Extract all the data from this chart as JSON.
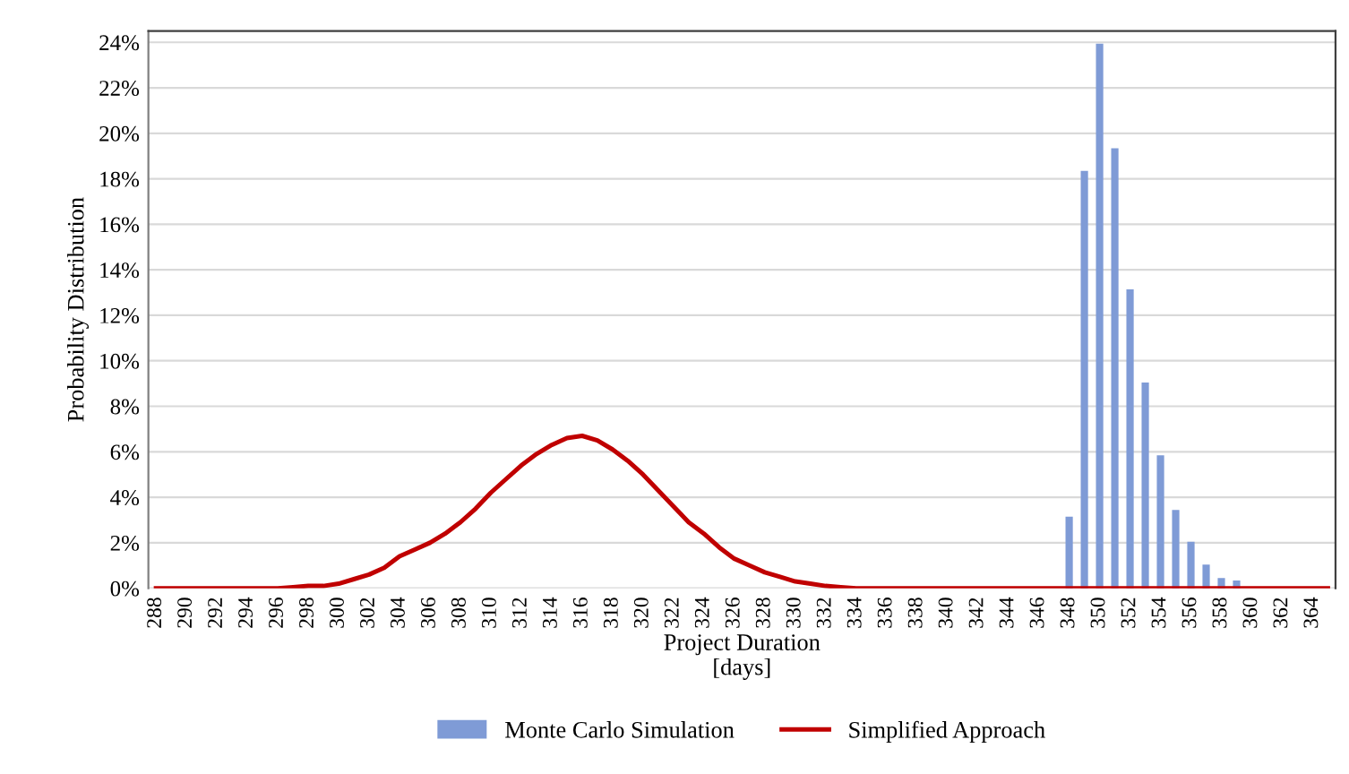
{
  "chart_data": {
    "type": "bar",
    "xlabel": "Project Duration\n[days]",
    "ylabel": "Probability Distribution",
    "categories": [
      "288",
      null,
      "290",
      null,
      "292",
      null,
      "294",
      null,
      "296",
      null,
      "298",
      null,
      "300",
      null,
      "302",
      null,
      "304",
      null,
      "306",
      null,
      "308",
      null,
      "310",
      null,
      "312",
      null,
      "314",
      null,
      "316",
      null,
      "318",
      null,
      "320",
      null,
      "322",
      null,
      "324",
      null,
      "326",
      null,
      "328",
      null,
      "330",
      null,
      "332",
      null,
      "334",
      null,
      "336",
      null,
      "338",
      null,
      "340",
      null,
      "342",
      null,
      "344",
      null,
      "346",
      null,
      "348",
      null,
      "350",
      null,
      "352",
      null,
      "354",
      null,
      "356",
      null,
      "358",
      null,
      "360",
      null,
      "362",
      null,
      "364",
      null
    ],
    "series": [
      {
        "name": "Monte Carlo Simulation",
        "color": "#7f9bd6",
        "values": [
          null,
          null,
          null,
          null,
          null,
          null,
          null,
          null,
          null,
          null,
          null,
          null,
          null,
          null,
          null,
          null,
          null,
          null,
          null,
          null,
          null,
          null,
          null,
          null,
          null,
          null,
          null,
          null,
          null,
          null,
          null,
          null,
          null,
          null,
          null,
          null,
          null,
          null,
          null,
          null,
          null,
          null,
          null,
          null,
          null,
          null,
          null,
          null,
          null,
          null,
          null,
          null,
          null,
          null,
          null,
          null,
          null,
          null,
          null,
          null,
          3.1,
          18.3,
          23.9,
          19.3,
          13.1,
          9.0,
          5.8,
          3.4,
          2.0,
          1.0,
          0.4,
          0.3,
          null,
          null,
          null,
          null,
          null,
          null
        ]
      },
      {
        "name": "Simplified Approach",
        "type": "line",
        "color": "#c00000",
        "values": [
          0,
          0,
          0,
          0,
          0,
          0,
          0,
          0,
          0,
          0.05,
          0.1,
          0.1,
          0.2,
          0.4,
          0.6,
          0.9,
          1.4,
          1.7,
          2.0,
          2.4,
          2.9,
          3.5,
          4.2,
          4.8,
          5.4,
          5.9,
          6.3,
          6.6,
          6.7,
          6.5,
          6.1,
          5.6,
          5.0,
          4.3,
          3.6,
          2.9,
          2.4,
          1.8,
          1.3,
          1.0,
          0.7,
          0.5,
          0.3,
          0.2,
          0.1,
          0.05,
          0,
          0,
          0,
          0,
          0,
          0,
          0,
          0,
          0,
          0,
          0,
          0,
          0,
          0,
          0,
          0,
          0,
          0,
          0,
          0,
          0,
          0,
          0,
          0,
          0,
          0,
          0,
          0,
          0,
          0,
          0,
          0
        ]
      }
    ],
    "ylim": [
      0,
      24.5
    ],
    "yticks": [
      {
        "value": 0,
        "label": "0%"
      },
      {
        "value": 2,
        "label": "2%"
      },
      {
        "value": 4,
        "label": "4%"
      },
      {
        "value": 6,
        "label": "6%"
      },
      {
        "value": 8,
        "label": "8%"
      },
      {
        "value": 10,
        "label": "10%"
      },
      {
        "value": 12,
        "label": "12%"
      },
      {
        "value": 14,
        "label": "14%"
      },
      {
        "value": 16,
        "label": "16%"
      },
      {
        "value": 18,
        "label": "18%"
      },
      {
        "value": 20,
        "label": "20%"
      },
      {
        "value": 22,
        "label": "22%"
      },
      {
        "value": 24,
        "label": "24%"
      }
    ],
    "grid": "y",
    "legend": "bottom"
  }
}
